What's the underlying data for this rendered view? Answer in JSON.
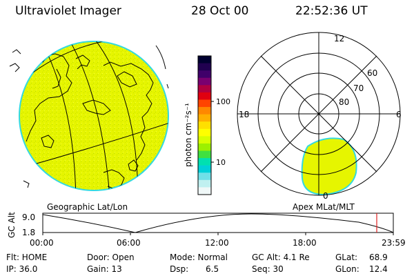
{
  "header": {
    "instrument": "Ultraviolet Imager",
    "date": "28 Oct 00",
    "time": "22:52:36 UT"
  },
  "colorbar": {
    "label": "photon cm⁻²s⁻¹",
    "tick_high": "100",
    "tick_low": "10",
    "colors": [
      "#000030",
      "#200050",
      "#40006a",
      "#7a0070",
      "#b00040",
      "#e00010",
      "#ff4400",
      "#ff8800",
      "#ffb000",
      "#ffe000",
      "#ffff00",
      "#d8ff00",
      "#9cf000",
      "#40e040",
      "#00e0b0",
      "#00d0d8",
      "#70e0e8",
      "#c0f0f0",
      "#f0f8f8"
    ]
  },
  "left_panel": {
    "caption": "Geographic Lat/Lon",
    "fill_color": "#e6f500",
    "rim_color": "#33d9e0"
  },
  "right_panel": {
    "caption": "Apex MLat/MLT",
    "mlt_labels": {
      "top": "12",
      "left": "18",
      "right": "6",
      "bottom": "0"
    },
    "lat_labels": [
      "60",
      "70",
      "80"
    ]
  },
  "altitude_plot": {
    "y_axis_title": "GC Alt",
    "y_max_label": "9.0",
    "y_min_label": "1.8",
    "x_labels": [
      "00:00",
      "06:00",
      "12:00",
      "18:00",
      "23:59"
    ],
    "current_marker_color": "#e02020"
  },
  "info": {
    "flt": "Flt: HOME",
    "ip": "IP: 36.0",
    "door": "Door: Open",
    "gain": "Gain: 13",
    "mode": "Mode: Normal",
    "dsp_label": "Dsp:",
    "dsp_value": "6.5",
    "gcalt": "GC Alt: 4.1 Re",
    "seq": "Seq: 30",
    "glat_label": "GLat:",
    "glat_value": "68.9",
    "glon_label": "GLon:",
    "glon_value": "12.4"
  }
}
